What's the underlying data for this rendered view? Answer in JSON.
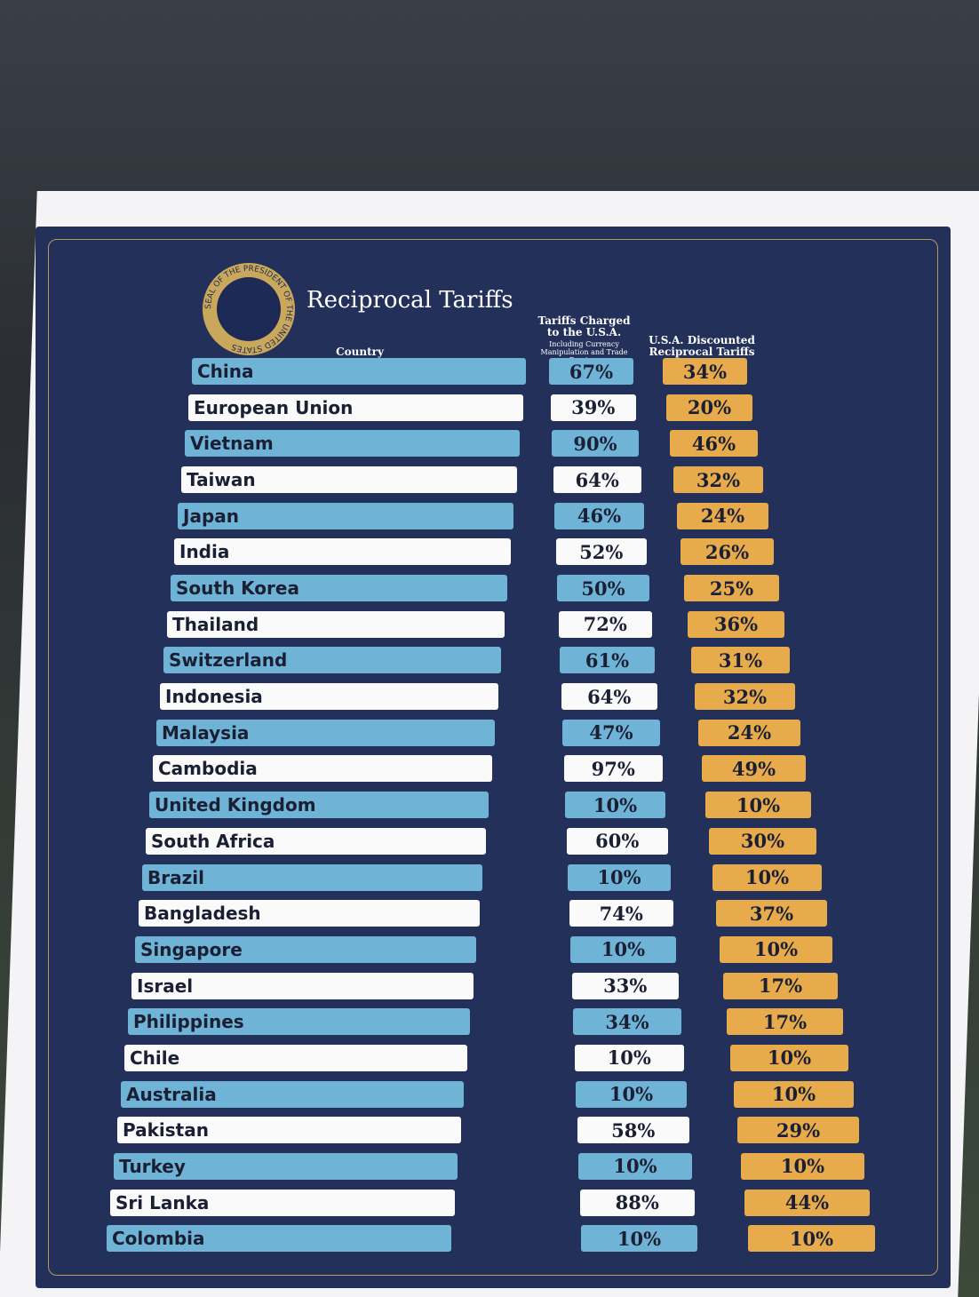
{
  "header": {
    "title": "Reciprocal Tariffs",
    "seal": "SEAL OF THE PRESIDENT OF THE UNITED STATES"
  },
  "table": {
    "columns": [
      "Country",
      "Tariffs Charged to the U.S.A.",
      "Including Currency Manipulation and Trade Barriers",
      "U.S.A. Discounted Reciprocal Tariffs"
    ],
    "rows": [
      [
        "China",
        "67%",
        "34%"
      ],
      [
        "European Union",
        "39%",
        "20%"
      ],
      [
        "Vietnam",
        "90%",
        "46%"
      ],
      [
        "Taiwan",
        "64%",
        "32%"
      ],
      [
        "Japan",
        "46%",
        "24%"
      ],
      [
        "India",
        "52%",
        "26%"
      ],
      [
        "South Korea",
        "50%",
        "25%"
      ],
      [
        "Thailand",
        "72%",
        "36%"
      ],
      [
        "Switzerland",
        "61%",
        "31%"
      ],
      [
        "Indonesia",
        "64%",
        "32%"
      ],
      [
        "Malaysia",
        "47%",
        "24%"
      ],
      [
        "Cambodia",
        "97%",
        "49%"
      ],
      [
        "United Kingdom",
        "10%",
        "10%"
      ],
      [
        "South Africa",
        "60%",
        "30%"
      ],
      [
        "Brazil",
        "10%",
        "10%"
      ],
      [
        "Bangladesh",
        "74%",
        "37%"
      ],
      [
        "Singapore",
        "10%",
        "10%"
      ],
      [
        "Israel",
        "33%",
        "17%"
      ],
      [
        "Philippines",
        "34%",
        "17%"
      ],
      [
        "Chile",
        "10%",
        "10%"
      ],
      [
        "Australia",
        "10%",
        "10%"
      ],
      [
        "Pakistan",
        "58%",
        "29%"
      ],
      [
        "Turkey",
        "10%",
        "10%"
      ],
      [
        "Sri Lanka",
        "88%",
        "44%"
      ],
      [
        "Colombia",
        "10%",
        "10%"
      ]
    ]
  }
}
